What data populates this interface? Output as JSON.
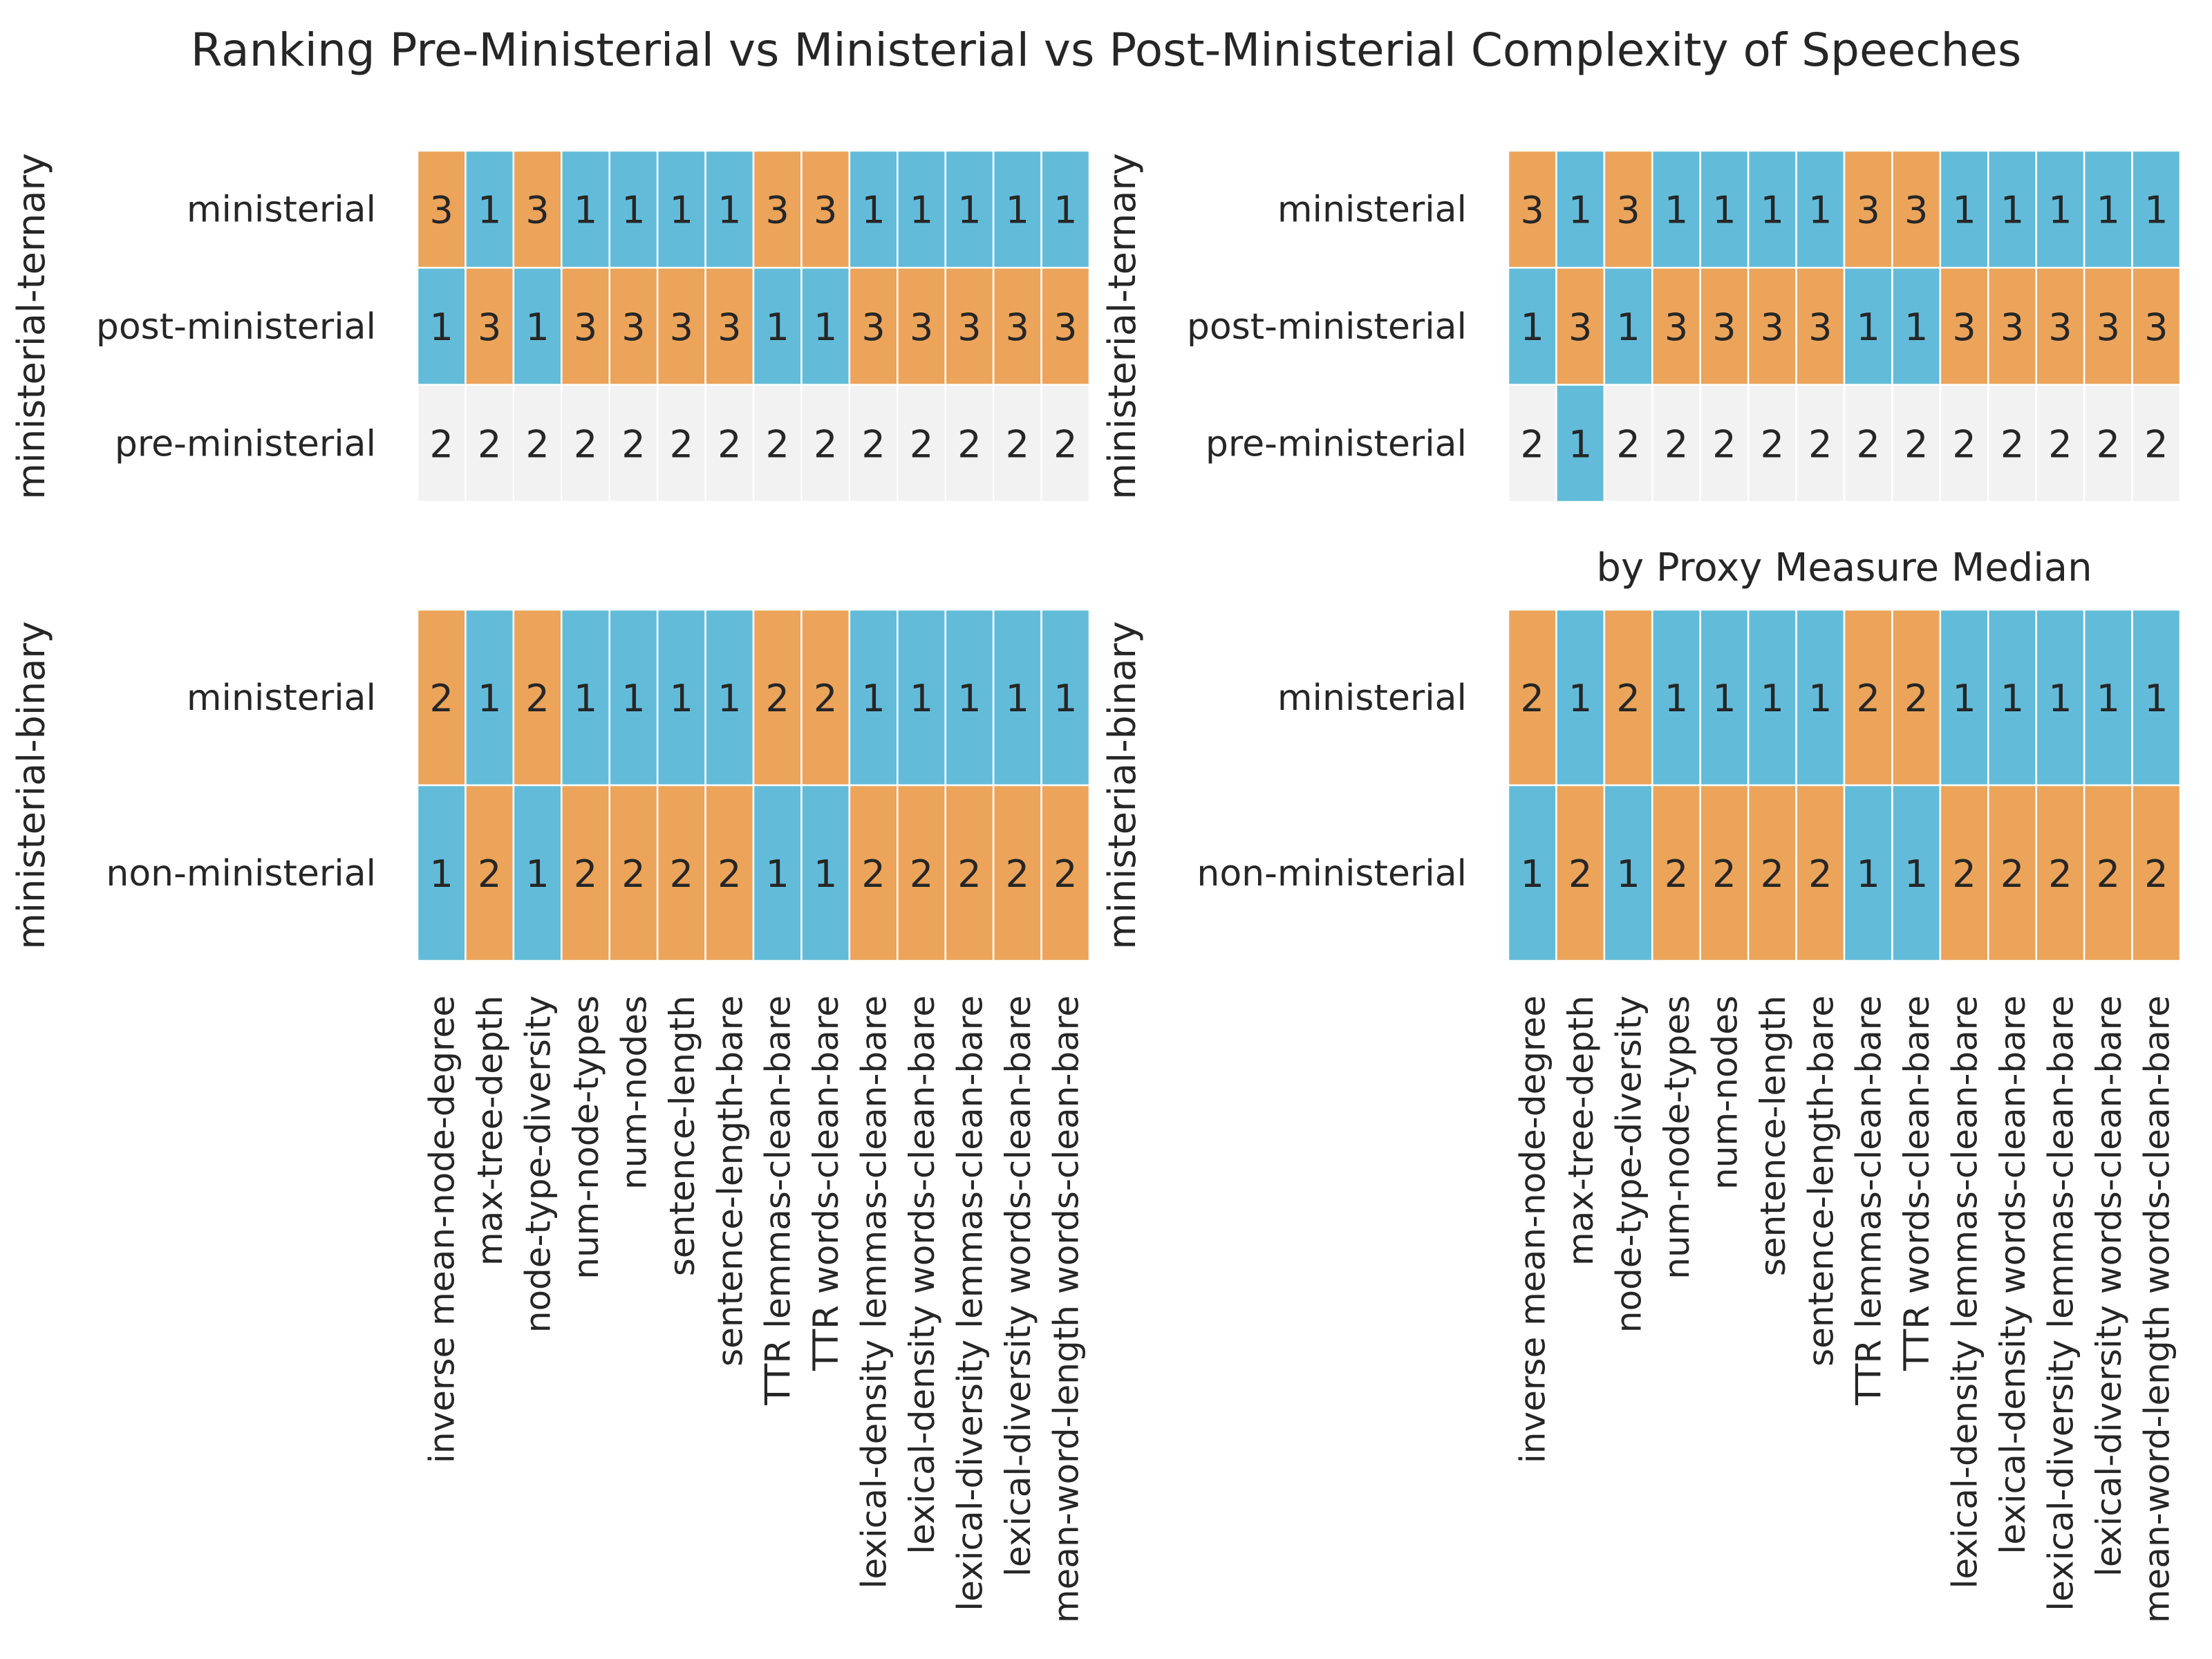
{
  "title": "Ranking Pre-Ministerial vs Ministerial vs Post-Ministerial Complexity of Speeches",
  "colors": {
    "rank_1": "#62bcd9",
    "rank_2": "#f2f2f2",
    "rank_3": "#eba45a",
    "binary_rank_2": "#eba45a",
    "cell_border": "#ffffff",
    "text": "#262626"
  },
  "columns": [
    "inverse mean-node-degree",
    "max-tree-depth",
    "node-type-diversity",
    "num-node-types",
    "num-nodes",
    "sentence-length",
    "sentence-length-bare",
    "TTR lemmas-clean-bare",
    "TTR words-clean-bare",
    "lexical-density lemmas-clean-bare",
    "lexical-density words-clean-bare",
    "lexical-diversity lemmas-clean-bare",
    "lexical-diversity words-clean-bare",
    "mean-word-length words-clean-bare"
  ],
  "chart_data": [
    {
      "type": "heatmap",
      "panel": "top-left",
      "title": "",
      "ylabel": "ministerial-ternary",
      "rows": [
        {
          "label": "ministerial",
          "values": [
            3,
            1,
            3,
            1,
            1,
            1,
            1,
            3,
            3,
            1,
            1,
            1,
            1,
            1
          ]
        },
        {
          "label": "post-ministerial",
          "values": [
            1,
            3,
            1,
            3,
            3,
            3,
            3,
            1,
            1,
            3,
            3,
            3,
            3,
            3
          ]
        },
        {
          "label": "pre-ministerial",
          "values": [
            2,
            2,
            2,
            2,
            2,
            2,
            2,
            2,
            2,
            2,
            2,
            2,
            2,
            2
          ]
        }
      ]
    },
    {
      "type": "heatmap",
      "panel": "top-right",
      "title": "",
      "ylabel": "ministerial-ternary",
      "rows": [
        {
          "label": "ministerial",
          "values": [
            3,
            1,
            3,
            1,
            1,
            1,
            1,
            3,
            3,
            1,
            1,
            1,
            1,
            1
          ]
        },
        {
          "label": "post-ministerial",
          "values": [
            1,
            3,
            1,
            3,
            3,
            3,
            3,
            1,
            1,
            3,
            3,
            3,
            3,
            3
          ]
        },
        {
          "label": "pre-ministerial",
          "values": [
            2,
            1,
            2,
            2,
            2,
            2,
            2,
            2,
            2,
            2,
            2,
            2,
            2,
            2
          ]
        }
      ]
    },
    {
      "type": "heatmap",
      "panel": "bottom-left",
      "title": "",
      "ylabel": "ministerial-binary",
      "rows": [
        {
          "label": "ministerial",
          "values": [
            2,
            1,
            2,
            1,
            1,
            1,
            1,
            2,
            2,
            1,
            1,
            1,
            1,
            1
          ]
        },
        {
          "label": "non-ministerial",
          "values": [
            1,
            2,
            1,
            2,
            2,
            2,
            2,
            1,
            1,
            2,
            2,
            2,
            2,
            2
          ]
        }
      ]
    },
    {
      "type": "heatmap",
      "panel": "bottom-right",
      "title": "by Proxy Measure Median",
      "ylabel": "ministerial-binary",
      "rows": [
        {
          "label": "ministerial",
          "values": [
            2,
            1,
            2,
            1,
            1,
            1,
            1,
            2,
            2,
            1,
            1,
            1,
            1,
            1
          ]
        },
        {
          "label": "non-ministerial",
          "values": [
            1,
            2,
            1,
            2,
            2,
            2,
            2,
            1,
            1,
            2,
            2,
            2,
            2,
            2
          ]
        }
      ]
    }
  ]
}
